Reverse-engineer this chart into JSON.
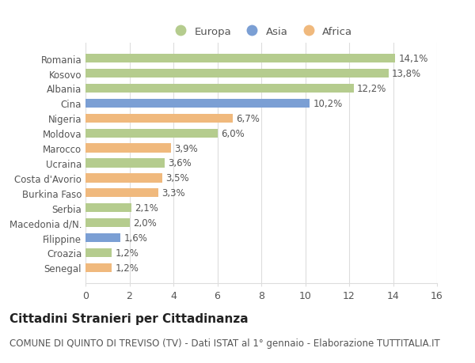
{
  "categories": [
    "Romania",
    "Kosovo",
    "Albania",
    "Cina",
    "Nigeria",
    "Moldova",
    "Marocco",
    "Ucraina",
    "Costa d'Avorio",
    "Burkina Faso",
    "Serbia",
    "Macedonia d/N.",
    "Filippine",
    "Croazia",
    "Senegal"
  ],
  "values": [
    14.1,
    13.8,
    12.2,
    10.2,
    6.7,
    6.0,
    3.9,
    3.6,
    3.5,
    3.3,
    2.1,
    2.0,
    1.6,
    1.2,
    1.2
  ],
  "labels": [
    "14,1%",
    "13,8%",
    "12,2%",
    "10,2%",
    "6,7%",
    "6,0%",
    "3,9%",
    "3,6%",
    "3,5%",
    "3,3%",
    "2,1%",
    "2,0%",
    "1,6%",
    "1,2%",
    "1,2%"
  ],
  "continents": [
    "Europa",
    "Europa",
    "Europa",
    "Asia",
    "Africa",
    "Europa",
    "Africa",
    "Europa",
    "Africa",
    "Africa",
    "Europa",
    "Europa",
    "Asia",
    "Europa",
    "Africa"
  ],
  "colors": {
    "Europa": "#b5cc8e",
    "Asia": "#7b9fd4",
    "Africa": "#f0b97d"
  },
  "xlim": [
    0,
    16
  ],
  "xticks": [
    0,
    2,
    4,
    6,
    8,
    10,
    12,
    14,
    16
  ],
  "title": "Cittadini Stranieri per Cittadinanza",
  "subtitle": "COMUNE DI QUINTO DI TREVISO (TV) - Dati ISTAT al 1° gennaio - Elaborazione TUTTITALIA.IT",
  "bg_color": "#ffffff",
  "grid_color": "#dddddd",
  "bar_height": 0.6,
  "label_fontsize": 8.5,
  "title_fontsize": 11,
  "subtitle_fontsize": 8.5,
  "ytick_fontsize": 8.5,
  "xtick_fontsize": 9
}
